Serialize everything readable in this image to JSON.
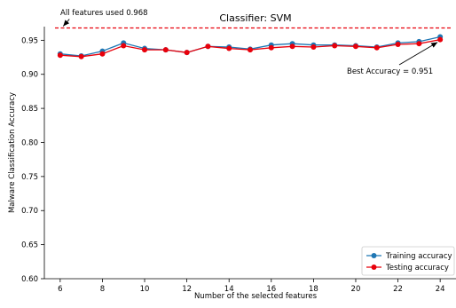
{
  "chart_data": {
    "type": "line",
    "title": "Classifier: SVM",
    "xlabel": "Number of the selected features",
    "ylabel": "Malware Classification Accuracy",
    "xlim": [
      5.25,
      24.75
    ],
    "ylim": [
      0.6,
      0.97
    ],
    "x_ticks": [
      6,
      8,
      10,
      12,
      14,
      16,
      18,
      20,
      22,
      24
    ],
    "y_ticks": [
      0.6,
      0.65,
      0.7,
      0.75,
      0.8,
      0.85,
      0.9,
      0.95
    ],
    "y_tick_labels": [
      "0.60",
      "0.65",
      "0.70",
      "0.75",
      "0.80",
      "0.85",
      "0.90",
      "0.95"
    ],
    "x": [
      6,
      7,
      8,
      9,
      10,
      11,
      12,
      13,
      14,
      15,
      16,
      17,
      18,
      19,
      20,
      21,
      22,
      23,
      24
    ],
    "series": [
      {
        "name": "Training accuracy",
        "color": "#1f77b4",
        "marker": "circle",
        "values": [
          0.93,
          0.927,
          0.934,
          0.946,
          0.938,
          0.936,
          0.932,
          0.941,
          0.94,
          0.937,
          0.943,
          0.945,
          0.943,
          0.943,
          0.942,
          0.94,
          0.946,
          0.948,
          0.955
        ]
      },
      {
        "name": "Testing accuracy",
        "color": "#e8000b",
        "marker": "circle",
        "values": [
          0.928,
          0.926,
          0.93,
          0.942,
          0.936,
          0.936,
          0.932,
          0.941,
          0.938,
          0.936,
          0.939,
          0.941,
          0.94,
          0.942,
          0.941,
          0.939,
          0.944,
          0.945,
          0.951
        ]
      }
    ],
    "reference_line": {
      "value": 0.968,
      "color": "#e8000b",
      "style": "dashed"
    },
    "annotations": [
      {
        "text": "All features used 0.968",
        "point": [
          6.1,
          0.968
        ]
      },
      {
        "text": "Best Accuracy = 0.951",
        "point": [
          24,
          0.951
        ]
      }
    ],
    "legend_position": "bottom-right",
    "grid": false
  }
}
